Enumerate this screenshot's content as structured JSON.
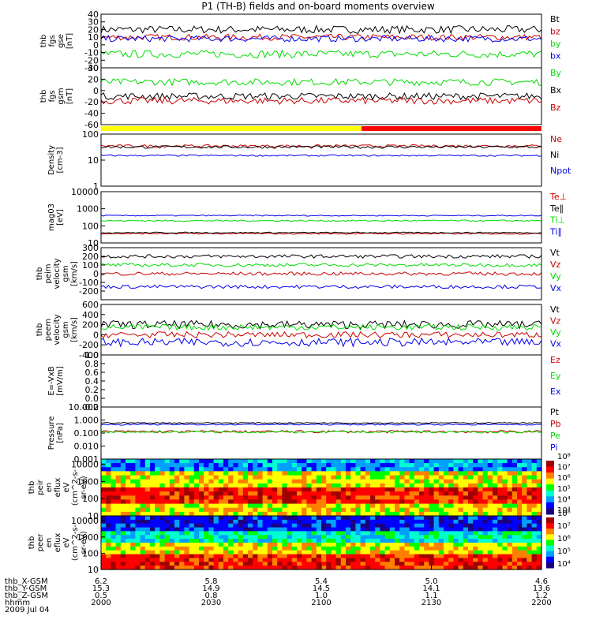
{
  "title": "P1 (TH-B) fields and on-board moments overview",
  "colors": {
    "black": "#000000",
    "red": "#cc0000",
    "green": "#00dd00",
    "blue": "#0000ee",
    "yellow": "#ffff00",
    "bright_red": "#ff0000"
  },
  "chart_data": [
    {
      "type": "line",
      "ylabel": "thb\nfgs\ngse\n[nT]",
      "ylim": [
        -30,
        40
      ],
      "yticks": [
        "40",
        "30",
        "20",
        "10",
        "0",
        "-10",
        "-20",
        "-30"
      ],
      "series": [
        {
          "name": "Bt",
          "color": "black",
          "level": 20,
          "noise": 5
        },
        {
          "name": "bz",
          "color": "red",
          "level": 10,
          "noise": 4
        },
        {
          "name": "by",
          "color": "green",
          "level": -12,
          "noise": 5
        },
        {
          "name": "bx",
          "color": "blue",
          "level": 8,
          "noise": 4
        }
      ]
    },
    {
      "type": "line",
      "ylabel": "thb\nfgs\ngsm\n[nT]",
      "ylim": [
        -60,
        40
      ],
      "yticks": [
        "-60",
        "-40",
        "-20",
        "0",
        "20",
        "40"
      ],
      "series": [
        {
          "name": "By",
          "color": "green",
          "level": 15,
          "noise": 6
        },
        {
          "name": "Bx",
          "color": "black",
          "level": -10,
          "noise": 6
        },
        {
          "name": "Bz",
          "color": "red",
          "level": -18,
          "noise": 6
        }
      ]
    },
    {
      "type": "line",
      "ylabel": "Density\n[cm-3]",
      "ylog": true,
      "ylim": [
        1,
        100
      ],
      "yticks": [
        "100",
        "10",
        "1"
      ],
      "series": [
        {
          "name": "Ne",
          "color": "red",
          "level": 35,
          "noise": 4
        },
        {
          "name": "Ni",
          "color": "black",
          "level": 32,
          "noise": 4
        },
        {
          "name": "Npot",
          "color": "blue",
          "level": 15,
          "noise": 1
        }
      ]
    },
    {
      "type": "line",
      "ylabel": "mag03\n[eV]",
      "ylog": true,
      "ylim": [
        10,
        10000
      ],
      "yticks": [
        "10000",
        "1000",
        "100",
        "10"
      ],
      "series": [
        {
          "name": "Te⊥",
          "color": "red",
          "level": 35,
          "noise": 3
        },
        {
          "name": "Te∥",
          "color": "black",
          "level": 40,
          "noise": 3
        },
        {
          "name": "Ti⊥",
          "color": "green",
          "level": 200,
          "noise": 20
        },
        {
          "name": "Ti∥",
          "color": "blue",
          "level": 400,
          "noise": 30
        }
      ]
    },
    {
      "type": "line",
      "ylabel": "thb\npeim\nvelocity\ngsm\n[km/s]",
      "ylim": [
        -300,
        300
      ],
      "yticks": [
        "300",
        "200",
        "100",
        "0",
        "-100",
        "-200"
      ],
      "series": [
        {
          "name": "Vt",
          "color": "black",
          "level": 200,
          "noise": 20
        },
        {
          "name": "Vz",
          "color": "red",
          "level": 0,
          "noise": 20
        },
        {
          "name": "Vy",
          "color": "green",
          "level": 100,
          "noise": 20
        },
        {
          "name": "Vx",
          "color": "blue",
          "level": -150,
          "noise": 20
        }
      ]
    },
    {
      "type": "line",
      "ylabel": "thb\npeem\nvelocity\ngsm\n[km/s]",
      "ylim": [
        -400,
        600
      ],
      "yticks": [
        "600",
        "400",
        "200",
        "0",
        "-200",
        "-400"
      ],
      "series": [
        {
          "name": "Vt",
          "color": "black",
          "level": 200,
          "noise": 80
        },
        {
          "name": "Vz",
          "color": "red",
          "level": 0,
          "noise": 60
        },
        {
          "name": "Vy",
          "color": "green",
          "level": 150,
          "noise": 60
        },
        {
          "name": "Vx",
          "color": "blue",
          "level": -150,
          "noise": 80
        }
      ]
    },
    {
      "type": "line",
      "ylabel": "E=-VxB\n[mV/m]",
      "ylim": [
        -0.2,
        1.0
      ],
      "yticks": [
        "1.0",
        "0.8",
        "0.6",
        "0.4",
        "0.2",
        "0.0",
        "-0.2"
      ],
      "series": [
        {
          "name": "Ez",
          "color": "red"
        },
        {
          "name": "Ey",
          "color": "green"
        },
        {
          "name": "Ex",
          "color": "blue"
        }
      ]
    },
    {
      "type": "line",
      "ylabel": "Pressure\n[nPa]",
      "ylog": true,
      "ylim": [
        0.001,
        10
      ],
      "yticks": [
        "10.000",
        "1.000",
        "0.100",
        "0.010",
        "0.001"
      ],
      "series": [
        {
          "name": "Pt",
          "color": "black",
          "level": 0.6,
          "noise": 0.05
        },
        {
          "name": "Pb",
          "color": "red",
          "level": 0.13,
          "noise": 0.03
        },
        {
          "name": "Pe",
          "color": "green",
          "level": 0.12,
          "noise": 0.02
        },
        {
          "name": "Pi",
          "color": "blue",
          "level": 0.45,
          "noise": 0.05
        }
      ]
    },
    {
      "type": "heatmap",
      "ylabel": "thb\npeir\nen\neflux\neV\n(cm^2-s-\nsr-eV)",
      "ylog": true,
      "ylim": [
        10,
        20000
      ],
      "yticks": [
        "10000",
        "1000",
        "100",
        "10"
      ],
      "colorbar": [
        "10³",
        "10⁴",
        "10⁵",
        "10⁶",
        "10⁷",
        "10⁸"
      ]
    },
    {
      "type": "heatmap",
      "ylabel": "thb\npeer\nen\neflux\neV\n(cm^2-s-\nsr-eV)",
      "ylog": true,
      "ylim": [
        10,
        20000
      ],
      "yticks": [
        "10000",
        "1000",
        "100",
        "10"
      ],
      "colorbar": [
        "10⁴",
        "10⁵",
        "10⁶",
        "10⁷",
        "10⁸"
      ]
    }
  ],
  "x_axis": {
    "row_labels": [
      "thb_X-GSM",
      "thb_Y-GSM",
      "thb_Z-GSM",
      "hhmm",
      "2009 Jul 04"
    ],
    "ticks": [
      {
        "x": "6.2",
        "y": "15.3",
        "z": "0.5",
        "t": "2000"
      },
      {
        "x": "5.8",
        "y": "14.9",
        "z": "0.8",
        "t": "2030"
      },
      {
        "x": "5.4",
        "y": "14.5",
        "z": "1.0",
        "t": "2100"
      },
      {
        "x": "5.0",
        "y": "14.1",
        "z": "1.1",
        "t": "2130"
      },
      {
        "x": "4.6",
        "y": "13.6",
        "z": "1.2",
        "t": "2200"
      }
    ]
  }
}
